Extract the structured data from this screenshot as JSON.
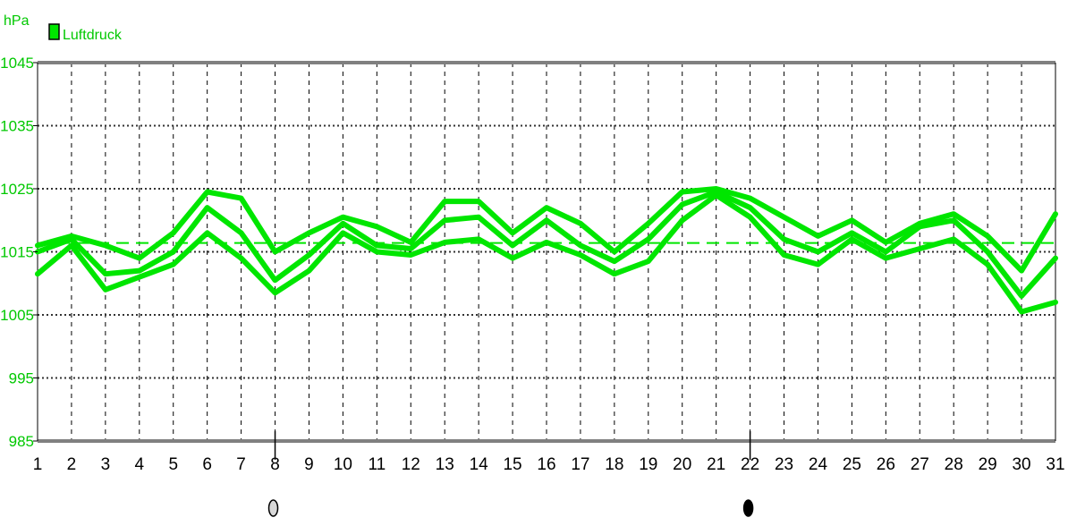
{
  "chart_data": {
    "type": "line",
    "title": "",
    "unit_label": "hPa",
    "legend": [
      {
        "label": "Luftdruck",
        "color": "#00e600"
      }
    ],
    "ylim": [
      985,
      1045
    ],
    "y_ticks": [
      985,
      995,
      1005,
      1015,
      1025,
      1035,
      1045
    ],
    "x": [
      1,
      2,
      3,
      4,
      5,
      6,
      7,
      8,
      9,
      10,
      11,
      12,
      13,
      14,
      15,
      16,
      17,
      18,
      19,
      20,
      21,
      22,
      23,
      24,
      25,
      26,
      27,
      28,
      29,
      30,
      31
    ],
    "grid": true,
    "reference_line": 1016.4,
    "markers": [
      {
        "day": 8,
        "icon": "full-moon-icon"
      },
      {
        "day": 22,
        "icon": "new-moon-icon"
      }
    ],
    "series": [
      {
        "values": [
          1016.0,
          1017.5,
          1016.0,
          1014.0,
          1018.0,
          1024.5,
          1023.5,
          1015.0,
          1018.0,
          1020.5,
          1019.0,
          1016.5,
          1023.0,
          1023.0,
          1018.0,
          1022.0,
          1019.5,
          1015.0,
          1019.5,
          1024.5,
          1025.0,
          1023.5,
          1020.5,
          1017.5,
          1020.0,
          1016.5,
          1019.5,
          1021.0,
          1017.5,
          1012.0,
          1021.0
        ]
      },
      {
        "values": [
          1015.0,
          1017.0,
          1011.5,
          1012.0,
          1015.0,
          1022.0,
          1018.0,
          1010.5,
          1014.5,
          1019.5,
          1016.0,
          1015.5,
          1020.0,
          1020.5,
          1016.0,
          1020.0,
          1016.0,
          1013.5,
          1017.0,
          1022.5,
          1024.5,
          1022.0,
          1017.0,
          1015.0,
          1018.0,
          1015.0,
          1019.0,
          1020.0,
          1015.0,
          1008.0,
          1014.0
        ]
      },
      {
        "values": [
          1011.5,
          1016.0,
          1009.0,
          1011.0,
          1013.0,
          1018.0,
          1014.0,
          1008.5,
          1012.0,
          1018.0,
          1015.0,
          1014.5,
          1016.5,
          1017.0,
          1014.0,
          1016.5,
          1014.5,
          1011.5,
          1013.5,
          1020.0,
          1024.0,
          1020.5,
          1014.5,
          1013.0,
          1017.0,
          1014.0,
          1015.5,
          1017.0,
          1013.0,
          1005.5,
          1007.0
        ]
      }
    ]
  }
}
